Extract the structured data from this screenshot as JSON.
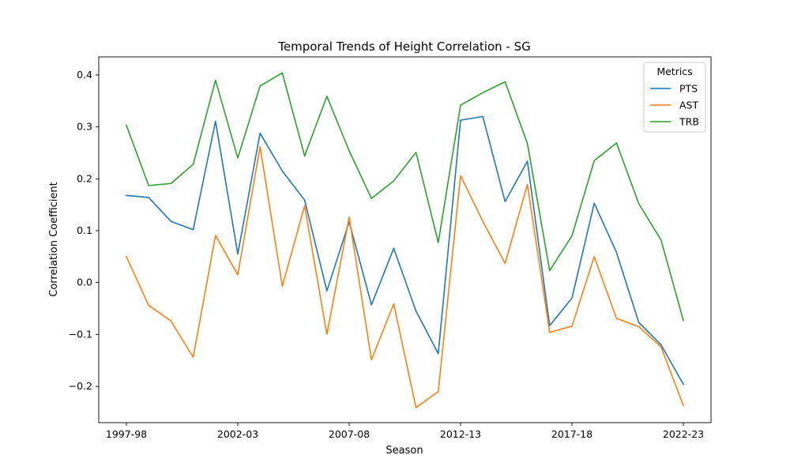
{
  "chart_data": {
    "type": "line",
    "title": "Temporal Trends of Height Correlation - SG",
    "xlabel": "Season",
    "ylabel": "Correlation Coefficient",
    "x": [
      "1997-98",
      "1998-99",
      "1999-00",
      "2000-01",
      "2001-02",
      "2002-03",
      "2003-04",
      "2004-05",
      "2005-06",
      "2006-07",
      "2007-08",
      "2008-09",
      "2009-10",
      "2010-11",
      "2011-12",
      "2012-13",
      "2013-14",
      "2014-15",
      "2015-16",
      "2016-17",
      "2017-18",
      "2018-19",
      "2019-20",
      "2020-21",
      "2021-22",
      "2022-23"
    ],
    "xtick_labels": [
      "1997-98",
      "2002-03",
      "2007-08",
      "2012-13",
      "2017-18",
      "2022-23"
    ],
    "xtick_indices": [
      0,
      5,
      10,
      15,
      20,
      25
    ],
    "ylim": [
      -0.27,
      0.435
    ],
    "yticks": [
      -0.2,
      -0.1,
      0.0,
      0.1,
      0.2,
      0.3,
      0.4
    ],
    "ytick_labels": [
      "−0.2",
      "−0.1",
      "0.0",
      "0.1",
      "0.2",
      "0.3",
      "0.4"
    ],
    "grid": false,
    "legend": {
      "title": "Metrics",
      "position": "top-right"
    },
    "series": [
      {
        "name": "PTS",
        "color": "#1f77b4",
        "values": [
          0.168,
          0.164,
          0.118,
          0.102,
          0.311,
          0.055,
          0.288,
          0.215,
          0.159,
          -0.016,
          0.117,
          -0.043,
          0.066,
          -0.055,
          -0.137,
          0.313,
          0.32,
          0.156,
          0.234,
          -0.083,
          -0.03,
          0.153,
          0.058,
          -0.077,
          -0.12,
          -0.196
        ]
      },
      {
        "name": "AST",
        "color": "#ff7f0e",
        "values": [
          0.05,
          -0.044,
          -0.074,
          -0.144,
          0.091,
          0.015,
          0.262,
          -0.007,
          0.148,
          -0.1,
          0.126,
          -0.149,
          -0.041,
          -0.241,
          -0.21,
          0.206,
          0.118,
          0.037,
          0.189,
          -0.096,
          -0.084,
          0.05,
          -0.069,
          -0.085,
          -0.124,
          -0.237
        ]
      },
      {
        "name": "TRB",
        "color": "#2ca02c",
        "values": [
          0.303,
          0.187,
          0.191,
          0.228,
          0.39,
          0.24,
          0.379,
          0.404,
          0.244,
          0.359,
          0.254,
          0.162,
          0.196,
          0.251,
          0.077,
          0.342,
          0.366,
          0.387,
          0.268,
          0.023,
          0.09,
          0.235,
          0.269,
          0.152,
          0.082,
          -0.073
        ]
      }
    ]
  }
}
